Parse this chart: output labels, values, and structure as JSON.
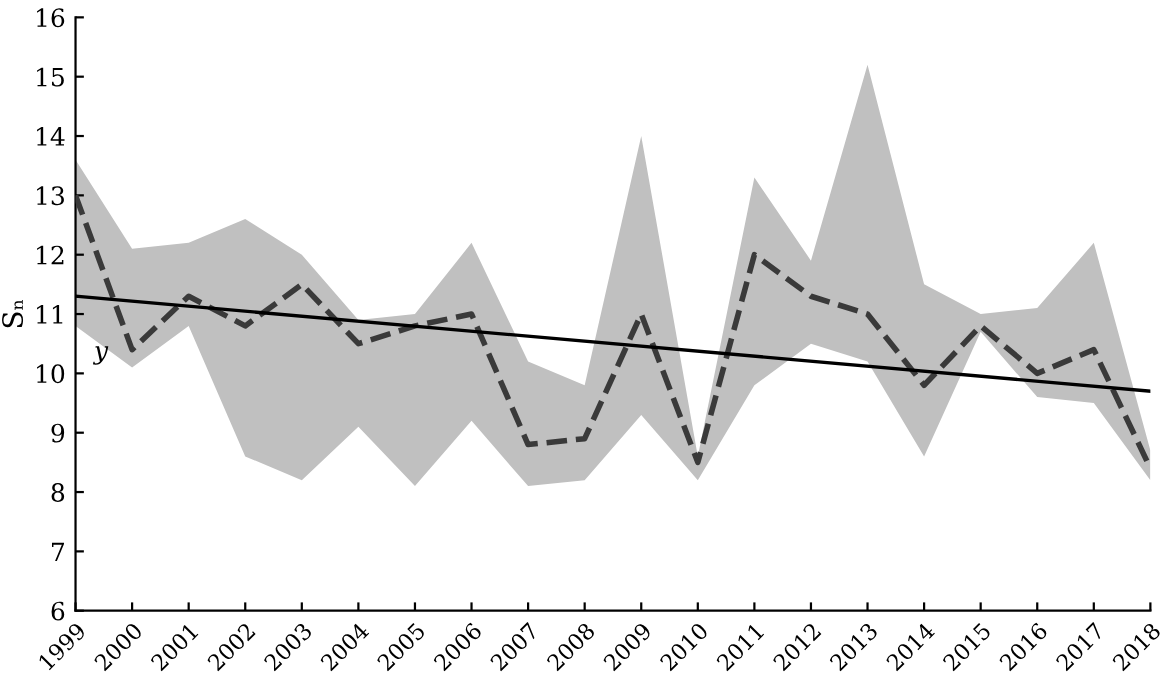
{
  "chart_data": {
    "type": "line",
    "ylabel": "Sₙ",
    "x": [
      1999,
      2000,
      2001,
      2002,
      2003,
      2004,
      2005,
      2006,
      2007,
      2008,
      2009,
      2010,
      2011,
      2012,
      2013,
      2014,
      2015,
      2016,
      2017,
      2018
    ],
    "series": [
      {
        "color": "#3a3a3a",
        "line_style": "dashed",
        "values": [
          13.0,
          10.4,
          11.3,
          10.8,
          11.5,
          10.5,
          10.8,
          11.0,
          8.8,
          8.9,
          11.0,
          8.5,
          12.0,
          11.3,
          11.0,
          9.8,
          10.8,
          10.0,
          10.4,
          8.4
        ],
        "upper": [
          13.6,
          12.1,
          12.2,
          12.6,
          12.0,
          10.9,
          11.0,
          12.2,
          10.2,
          9.8,
          14.0,
          8.6,
          13.3,
          11.9,
          15.2,
          11.5,
          11.0,
          11.1,
          12.2,
          8.7
        ],
        "lower": [
          10.8,
          10.1,
          10.8,
          8.6,
          8.2,
          9.1,
          8.1,
          9.2,
          8.1,
          8.2,
          9.3,
          8.2,
          9.8,
          10.5,
          10.2,
          8.6,
          10.7,
          9.6,
          9.5,
          8.2
        ]
      },
      {
        "color": "#000000",
        "line_style": "solid",
        "x": [
          1999,
          2018
        ],
        "values": [
          11.3,
          9.7
        ]
      }
    ],
    "annotations": [
      {
        "text": "y",
        "x": 1999.45,
        "y": 10.35
      }
    ],
    "xlim": [
      1999,
      2018
    ],
    "xticks": [
      1999,
      2000,
      2001,
      2002,
      2003,
      2004,
      2005,
      2006,
      2007,
      2008,
      2009,
      2010,
      2011,
      2012,
      2013,
      2014,
      2015,
      2016,
      2017,
      2018
    ],
    "ylim": [
      6,
      16
    ],
    "yticks": [
      6,
      7,
      8,
      9,
      10,
      11,
      12,
      13,
      14,
      15,
      16
    ],
    "grid": false,
    "legend": false
  }
}
